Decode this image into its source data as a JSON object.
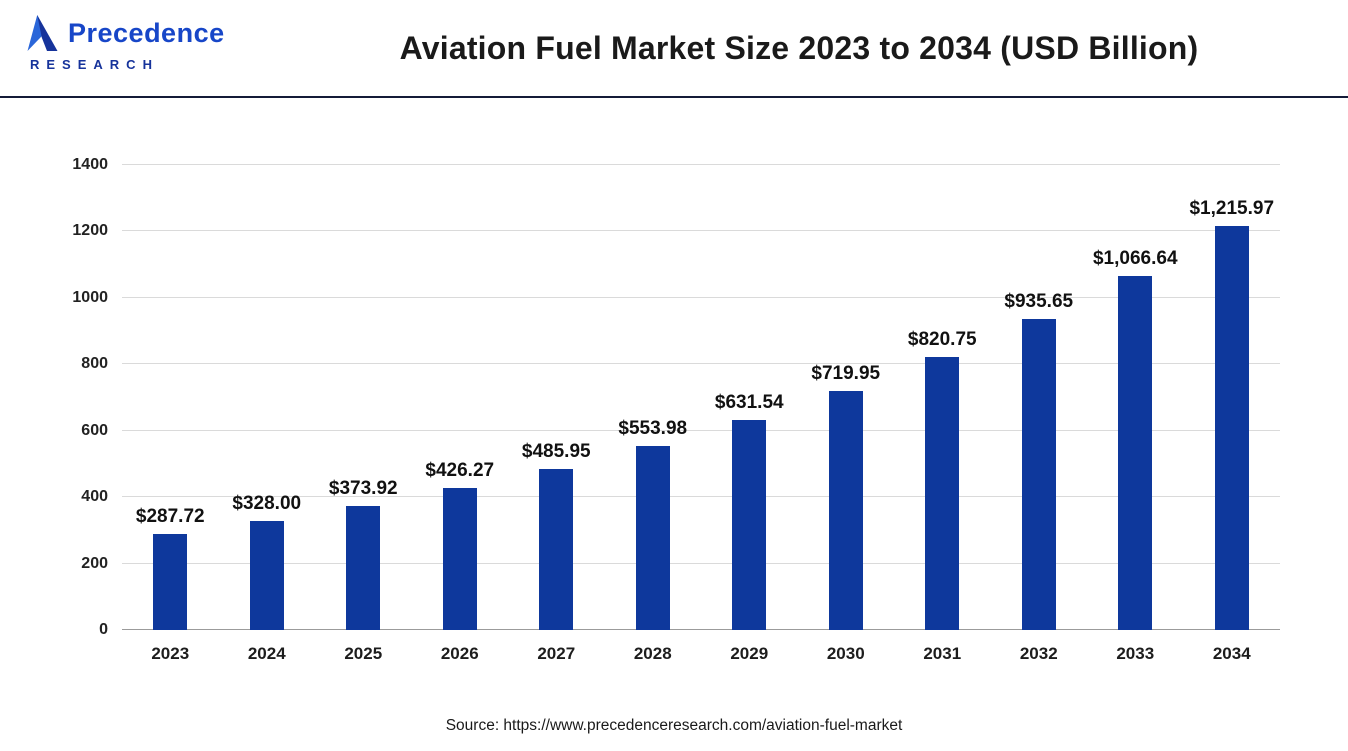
{
  "header": {
    "title": "Aviation Fuel Market Size 2023 to 2034 (USD Billion)",
    "logo": {
      "line1": "Precedence",
      "line2": "RESEARCH"
    }
  },
  "chart_data": {
    "type": "bar",
    "title": "Aviation Fuel Market Size 2023 to 2034 (USD Billion)",
    "categories": [
      "2023",
      "2024",
      "2025",
      "2026",
      "2027",
      "2028",
      "2029",
      "2030",
      "2031",
      "2032",
      "2033",
      "2034"
    ],
    "values": [
      287.72,
      328.0,
      373.92,
      426.27,
      485.95,
      553.98,
      631.54,
      719.95,
      820.75,
      935.65,
      1066.64,
      1215.97
    ],
    "value_labels": [
      "$287.72",
      "$328.00",
      "$373.92",
      "$426.27",
      "$485.95",
      "$553.98",
      "$631.54",
      "$719.95",
      "$820.75",
      "$935.65",
      "$1,066.64",
      "$1,215.97"
    ],
    "xlabel": "",
    "ylabel": "",
    "ylim": [
      0,
      1400
    ],
    "y_ticks": [
      0,
      200,
      400,
      600,
      800,
      1000,
      1200,
      1400
    ],
    "grid": true,
    "legend_position": "none",
    "bar_color": "#0e389c"
  },
  "footer": {
    "source": "Source: https://www.precedenceresearch.com/aviation-fuel-market"
  }
}
